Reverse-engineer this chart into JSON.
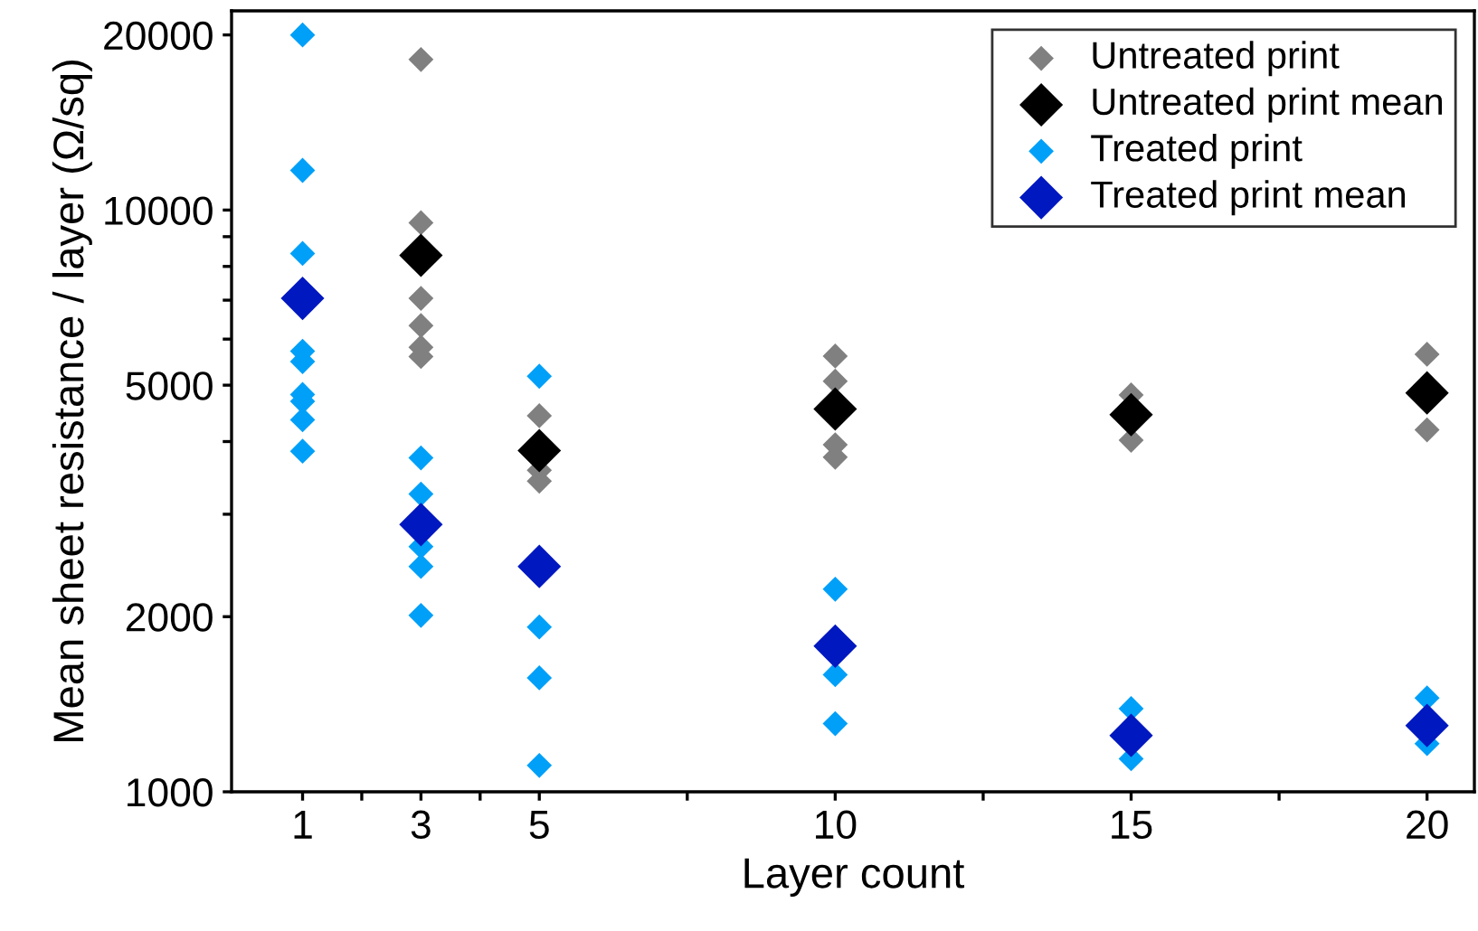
{
  "chart_data": {
    "type": "scatter",
    "xlabel": "Layer count",
    "ylabel": "Mean sheet resistance / layer (Ω/sq)",
    "log": "y",
    "marker": "diamond",
    "grid": false,
    "legend": "top right",
    "xlim": [
      -0.2,
      20.8
    ],
    "xticks": [
      1,
      {
        "value": 2,
        "label": null
      },
      3,
      {
        "value": 4,
        "label": null
      },
      5,
      {
        "value": 7.5,
        "label": null
      },
      10,
      {
        "value": 12.5,
        "label": null
      },
      15,
      {
        "value": 17.5,
        "label": null
      },
      20
    ],
    "ylim": [
      1000,
      22000
    ],
    "yticks": [
      1000,
      2000,
      {
        "value": 3000,
        "label": null
      },
      {
        "value": 4000,
        "label": null
      },
      5000,
      {
        "value": 6000,
        "label": null
      },
      {
        "value": 7000,
        "label": null
      },
      {
        "value": 8000,
        "label": null
      },
      {
        "value": 9000,
        "label": null
      },
      10000,
      20000
    ],
    "series": [
      {
        "name": "Untreated print",
        "color": "#808080",
        "x": [
          3,
          3,
          3,
          3,
          3,
          3,
          5,
          5,
          5,
          10,
          10,
          10,
          10,
          15,
          15,
          20,
          20
        ],
        "values": [
          18150,
          9510,
          7050,
          6330,
          5810,
          5600,
          4430,
          3570,
          3420,
          5610,
          5080,
          3950,
          3760,
          4810,
          4020,
          5650,
          4190
        ]
      },
      {
        "name": "Untreated print mean",
        "color": "#000000",
        "x": [
          3,
          5,
          10,
          15,
          20
        ],
        "values": [
          8360,
          3860,
          4550,
          4450,
          4850
        ]
      },
      {
        "name": "Treated print",
        "color": "#00a0f8",
        "x": [
          1,
          1,
          1,
          1,
          1,
          1,
          1,
          1,
          1,
          3,
          3,
          3,
          3,
          3,
          5,
          5,
          5,
          5,
          10,
          10,
          10,
          15,
          15,
          20,
          20
        ],
        "values": [
          20000,
          11700,
          8420,
          5720,
          5490,
          4820,
          4690,
          4360,
          3850,
          3750,
          3250,
          2640,
          2440,
          2010,
          5180,
          1920,
          1570,
          1110,
          2230,
          1590,
          1310,
          1390,
          1140,
          1450,
          1210
        ]
      },
      {
        "name": "Treated print mean",
        "color": "#0018c0",
        "x": [
          1,
          3,
          5,
          10,
          15,
          20
        ],
        "values": [
          7050,
          2880,
          2440,
          1780,
          1250,
          1300
        ]
      }
    ]
  }
}
